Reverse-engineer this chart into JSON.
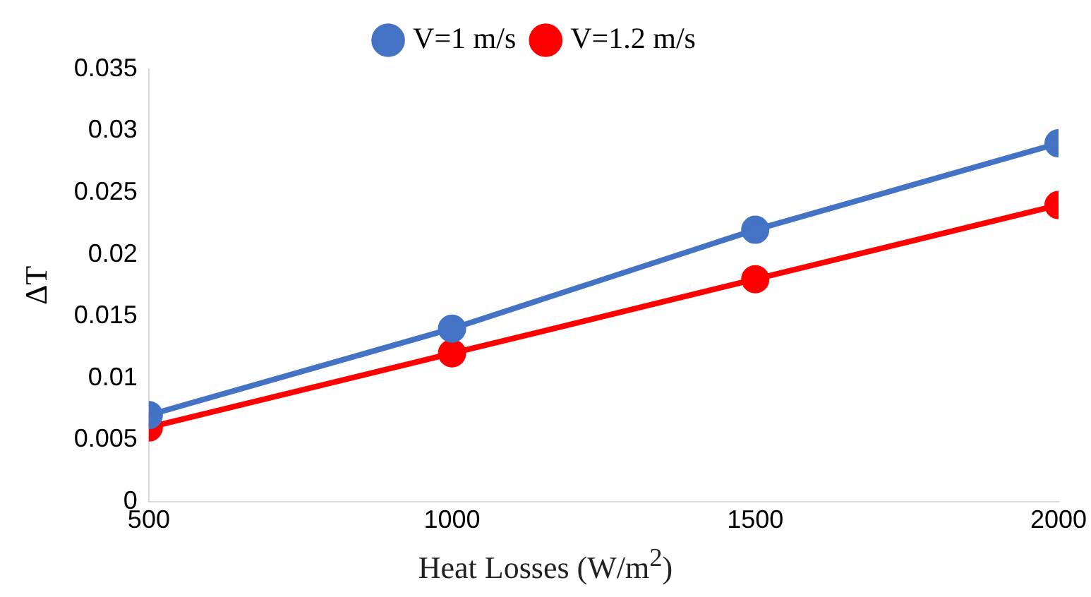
{
  "chart_data": {
    "type": "line",
    "xlabel": "Heat Losses  (W/m$^{2}$)",
    "ylabel": "ΔT",
    "x": [
      500,
      1000,
      1500,
      2000
    ],
    "series": [
      {
        "name": "V=1 m/s",
        "color": "#4472c4",
        "values": [
          0.007,
          0.014,
          0.022,
          0.029
        ]
      },
      {
        "name": "V=1.2 m/s",
        "color": "#ff0000",
        "values": [
          0.006,
          0.012,
          0.018,
          0.024
        ]
      }
    ],
    "xlim": [
      500,
      2000
    ],
    "xticks": [
      500,
      1000,
      1500,
      2000
    ],
    "ylim": [
      0,
      0.035
    ],
    "yticks": [
      0,
      0.005,
      0.01,
      0.015,
      0.02,
      0.025,
      0.03,
      0.035
    ],
    "grid": false,
    "legend": "top",
    "marker": "circle",
    "line_style": "solid"
  }
}
